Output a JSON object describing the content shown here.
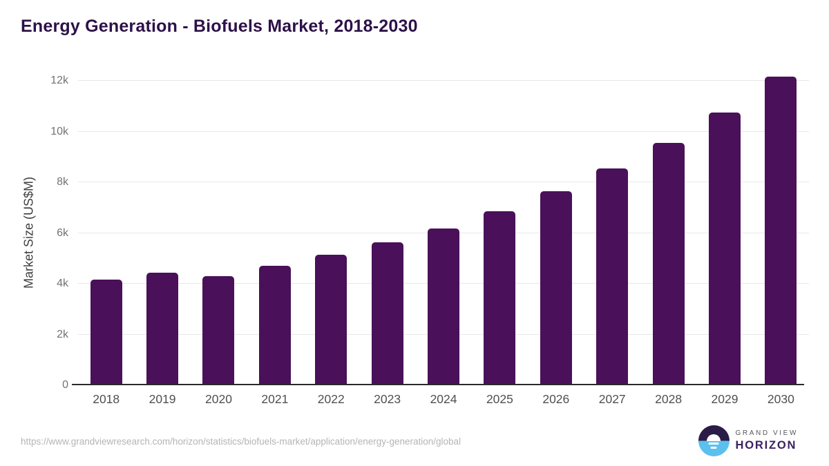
{
  "header": {
    "title": "Energy Generation - Biofuels Market, 2018-2030"
  },
  "chart_data": {
    "type": "bar",
    "title": "Energy Generation - Biofuels Market, 2018-2030",
    "categories": [
      "2018",
      "2019",
      "2020",
      "2021",
      "2022",
      "2023",
      "2024",
      "2025",
      "2026",
      "2027",
      "2028",
      "2029",
      "2030"
    ],
    "values": [
      4170,
      4440,
      4310,
      4720,
      5150,
      5640,
      6190,
      6850,
      7640,
      8540,
      9550,
      10760,
      12160
    ],
    "xlabel": "",
    "ylabel": "Market Size (US$M)",
    "ylim": [
      0,
      12400
    ],
    "yticks": [
      {
        "value": 0,
        "label": "0"
      },
      {
        "value": 2000,
        "label": "2k"
      },
      {
        "value": 4000,
        "label": "4k"
      },
      {
        "value": 6000,
        "label": "6k"
      },
      {
        "value": 8000,
        "label": "8k"
      },
      {
        "value": 10000,
        "label": "10k"
      },
      {
        "value": 12000,
        "label": "12k"
      }
    ],
    "grid": true,
    "legend": "none",
    "bar_color": "#4a1059"
  },
  "footer": {
    "source_url": "https://www.grandviewresearch.com/horizon/statistics/biofuels-market/application/energy-generation/global",
    "logo": {
      "line1": "GRAND VIEW",
      "line2": "HORIZON"
    }
  },
  "colors": {
    "title": "#2d1148",
    "bar": "#4a1059",
    "gridline": "#e7e7e7",
    "axis_line": "#2a2a2a",
    "y_tick_text": "#727272",
    "x_tick_text": "#4f4f4f",
    "url_text": "#b4b4b4",
    "logo_dark": "#2b1b47",
    "logo_blue": "#5cc0ee",
    "logo_horizon_text": "#3b2060"
  }
}
